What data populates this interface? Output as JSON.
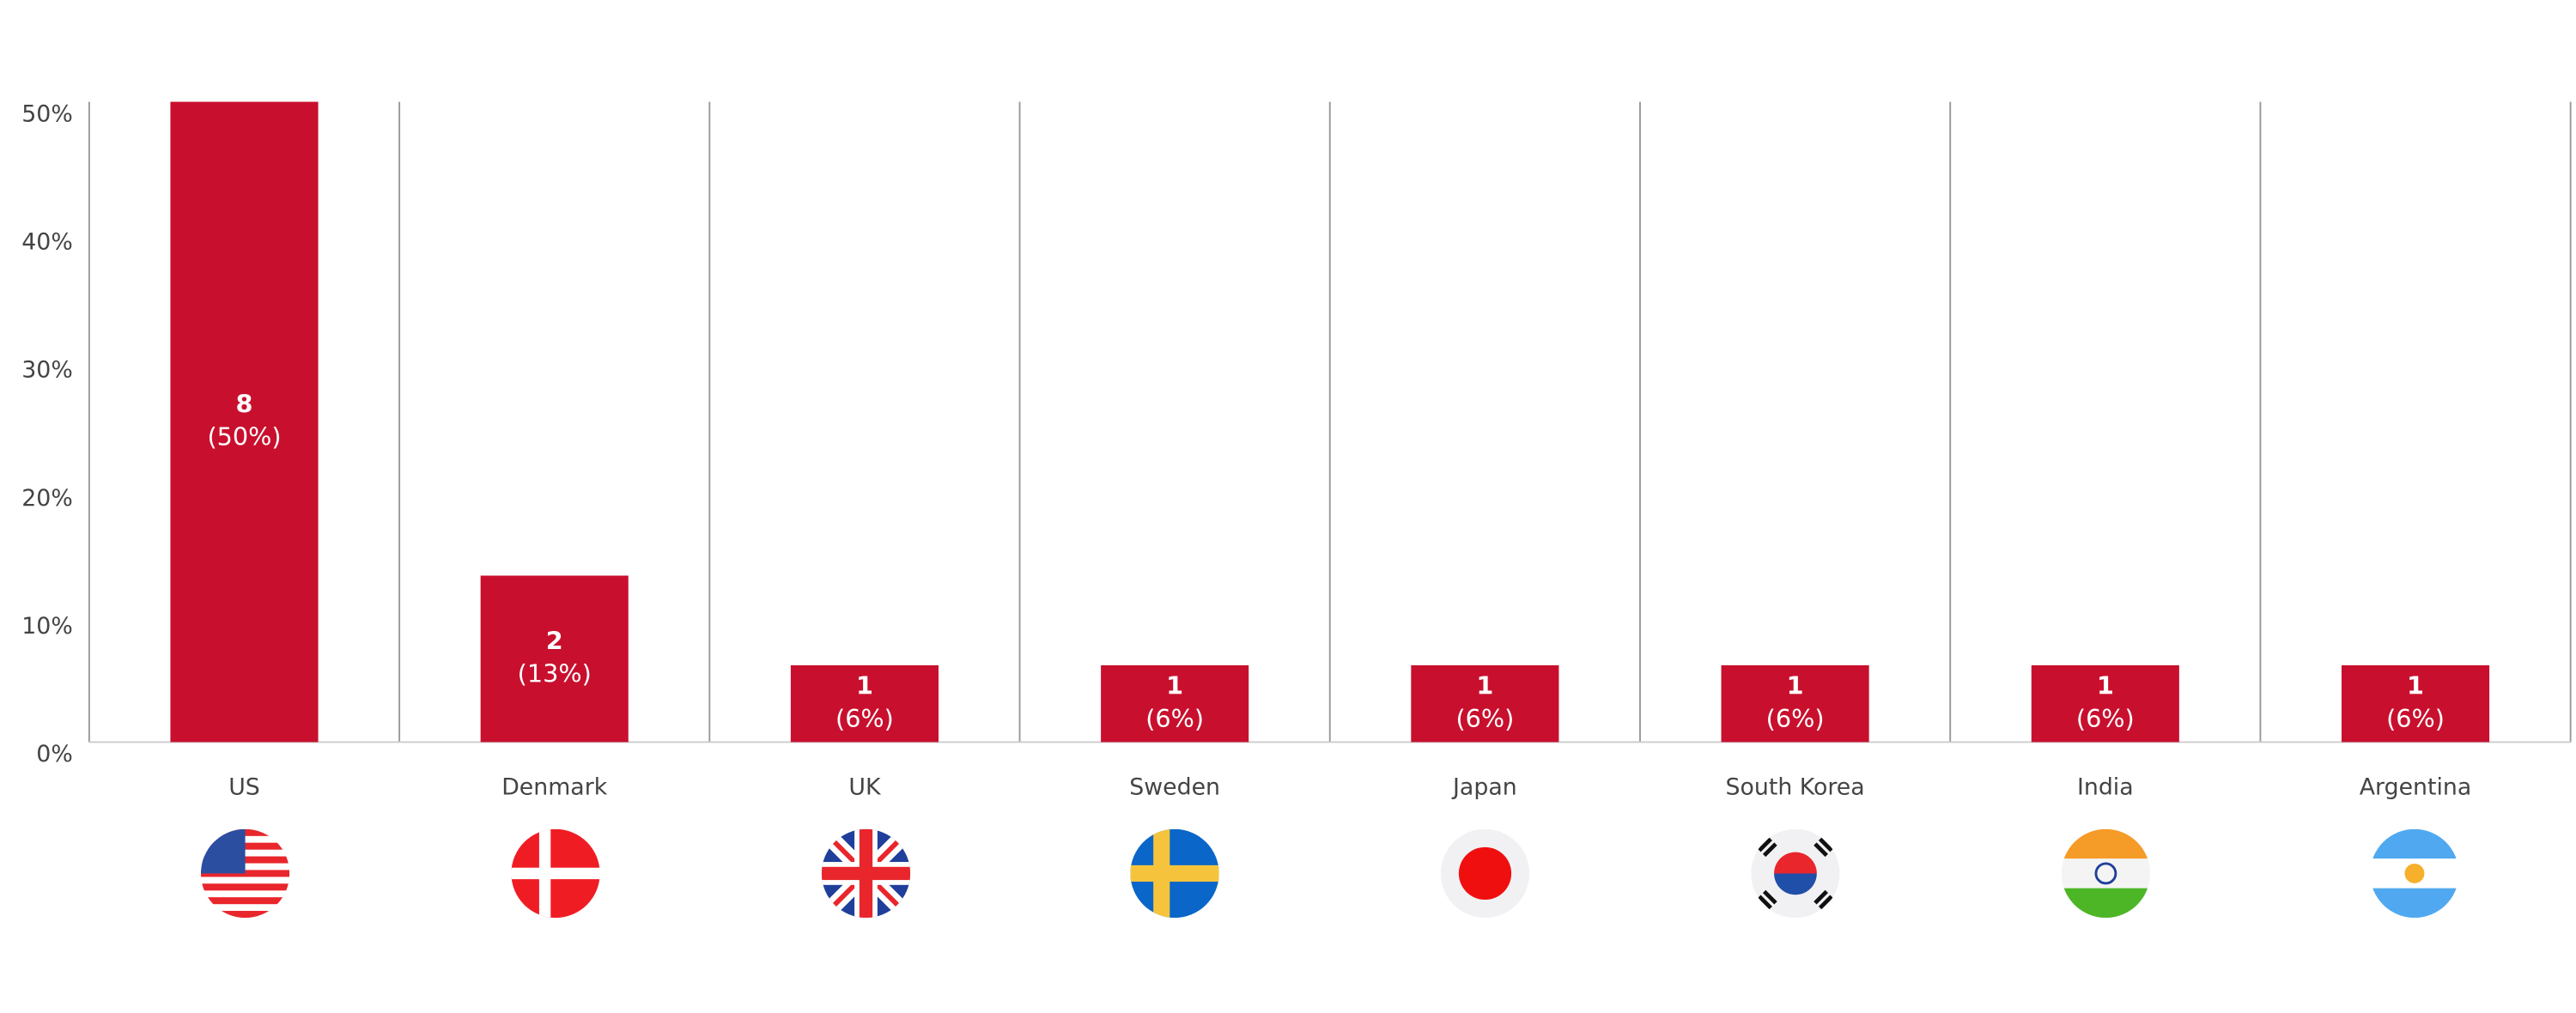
{
  "chart_data": {
    "type": "bar",
    "categories": [
      "US",
      "Denmark",
      "UK",
      "Sweden",
      "Japan",
      "South Korea",
      "India",
      "Argentina"
    ],
    "values": [
      50,
      13,
      6,
      6,
      6,
      6,
      6,
      6
    ],
    "value_labels": [
      "(50%)",
      "(13%)",
      "(6%)",
      "(6%)",
      "(6%)",
      "(6%)",
      "(6%)",
      "(6%)"
    ],
    "counts": [
      8,
      2,
      1,
      1,
      1,
      1,
      1,
      1
    ],
    "color": "#c8102e",
    "ylim": [
      0,
      50
    ],
    "yticks": [
      {
        "value": 0,
        "label": "0%"
      },
      {
        "value": 10,
        "label": "10%"
      },
      {
        "value": 20,
        "label": "20%"
      },
      {
        "value": 30,
        "label": "30%"
      },
      {
        "value": 40,
        "label": "40%"
      },
      {
        "value": 50,
        "label": "50%"
      }
    ]
  }
}
